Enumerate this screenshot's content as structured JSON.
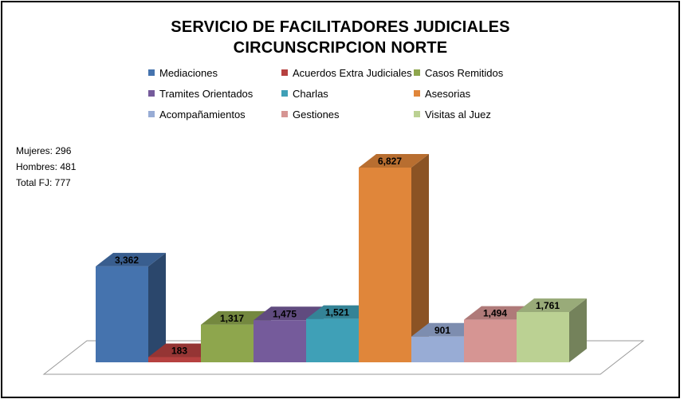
{
  "chart_data": {
    "type": "bar",
    "title": "SERVICIO DE FACILITADORES JUDICIALES",
    "subtitle": "CIRCUNSCRIPCION NORTE",
    "categories": [
      "Mediaciones",
      "Acuerdos Extra Judiciales",
      "Casos Remitidos",
      "Tramites Orientados",
      "Charlas",
      "Asesorias",
      "Acompañamientos",
      "Gestiones",
      "Visitas al Juez"
    ],
    "values": [
      3362,
      183,
      1317,
      1475,
      1521,
      6827,
      901,
      1494,
      1761
    ],
    "value_labels": [
      "3,362",
      "183",
      "1,317",
      "1,475",
      "1,521",
      "6,827",
      "901",
      "1,494",
      "1,761"
    ],
    "colors": [
      "#4573ae",
      "#b64140",
      "#8ea64d",
      "#755b9b",
      "#3fa0b7",
      "#e0863a",
      "#98acd5",
      "#d69593",
      "#bbd193"
    ],
    "legend_position": "top",
    "grid": false,
    "style": "3d"
  },
  "stats": {
    "mujeres": "Mujeres: 296",
    "hombres": "Hombres: 481",
    "total": "Total FJ: 777"
  }
}
